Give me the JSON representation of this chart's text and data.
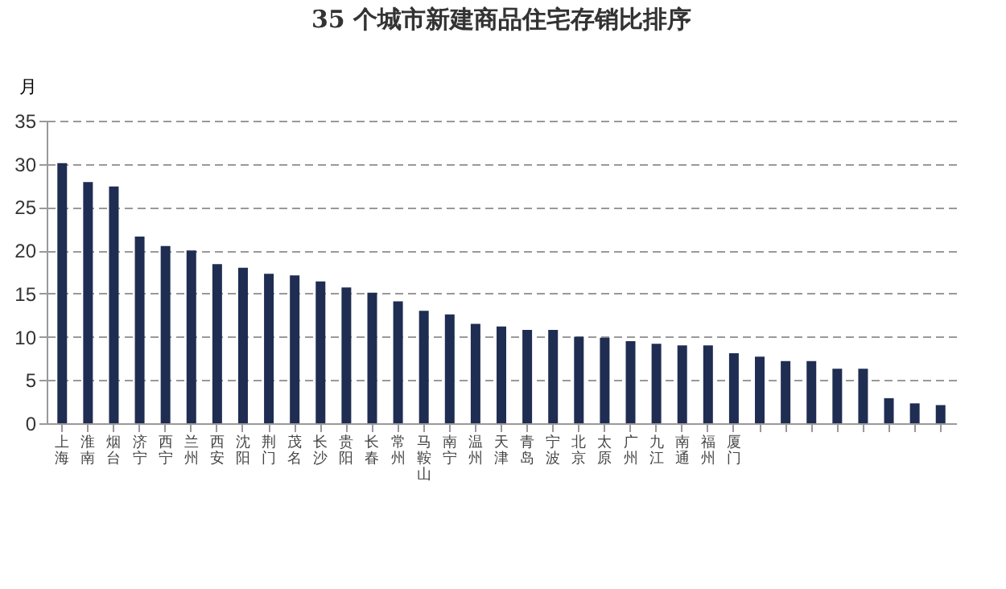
{
  "chart_data": {
    "type": "bar",
    "title": "35 个城市新建商品住宅存销比排序",
    "ylabel": "月",
    "categories": [
      "上海",
      "淮南",
      "烟台",
      "济宁",
      "西宁",
      "兰州",
      "西安",
      "沈阳",
      "荆门",
      "茂名",
      "长沙",
      "贵阳",
      "长春",
      "常州",
      "马鞍山",
      "南宁",
      "温州",
      "天津",
      "青岛",
      "宁波",
      "北京",
      "太原",
      "广州",
      "九江",
      "南通",
      "福州",
      "厦门",
      null,
      null,
      null,
      null,
      null,
      null,
      null,
      null
    ],
    "values": [
      30.1,
      27.9,
      27.4,
      21.6,
      20.5,
      20.0,
      18.4,
      18.0,
      17.3,
      17.1,
      16.4,
      15.7,
      15.1,
      14.1,
      13.0,
      12.6,
      11.5,
      11.2,
      10.8,
      10.8,
      10.0,
      9.9,
      9.5,
      9.2,
      9.0,
      9.0,
      8.1,
      7.7,
      7.2,
      7.2,
      6.3,
      6.3,
      2.9,
      2.3,
      2.1
    ],
    "color": "#1f2d52",
    "ylim": [
      0,
      35
    ],
    "yticks": [
      0,
      5,
      10,
      15,
      20,
      25,
      30,
      35
    ],
    "grid": "y",
    "line_style": "dashed"
  }
}
